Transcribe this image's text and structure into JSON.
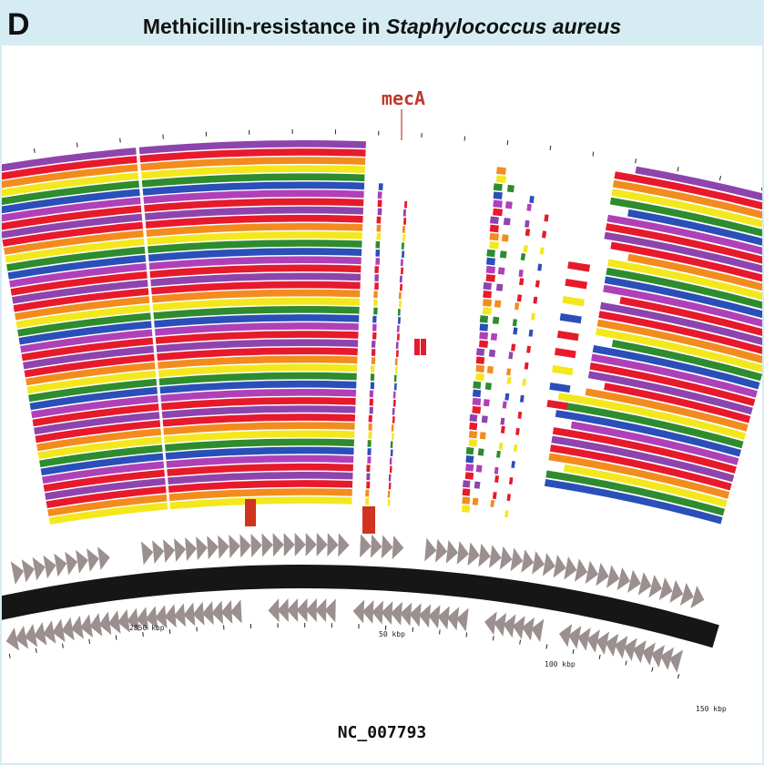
{
  "header": {
    "panel_letter": "D",
    "title_prefix": "Methicillin-resistance in ",
    "title_species": "Staphylococcus aureus"
  },
  "gene_label": "mecA",
  "genome": {
    "accession": "NC_007793",
    "tick_labels": [
      "2850 kbp",
      "50 kbp",
      "100 kbp",
      "150 kbp"
    ]
  },
  "colors": {
    "ring_cycle": [
      "#8e44ad",
      "#e8192c",
      "#f28c1e",
      "#f3e81e",
      "#2e8b2e",
      "#2a4fb8",
      "#b040b8",
      "#e51a2a"
    ],
    "gene_arrow": "#9b8f8f",
    "backbone": "#161616",
    "marker": "#d0341f",
    "label": "#c0392b"
  }
}
